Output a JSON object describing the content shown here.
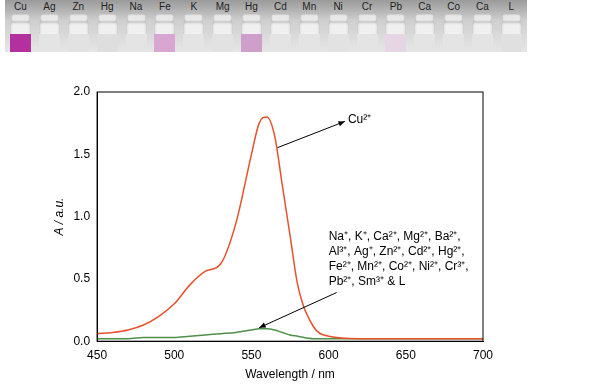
{
  "photo": {
    "labels": [
      "Cu",
      "Ag",
      "Zn",
      "Hg",
      "Na",
      "Fe",
      "K",
      "Mg",
      "Hg",
      "Cd",
      "Mn",
      "Ni",
      "Cr",
      "Pb",
      "Ca",
      "Co",
      "Ca",
      "L"
    ],
    "colors": [
      "#b4309e",
      "#e4e4e4",
      "#e2e2e2",
      "#dedede",
      "#e4e4e4",
      "#d9a6d2",
      "#e4e4e4",
      "#e2e2e2",
      "#cf9fcc",
      "#e4e4e4",
      "#e4e4e4",
      "#e2e2e2",
      "#e4e4e4",
      "#e6d6e4",
      "#e4e4e4",
      "#e4e4e4",
      "#e4e4e4",
      "#e0e0e0"
    ]
  },
  "chart_data": {
    "type": "line",
    "x_label": "Wavelength / nm",
    "y_label": "A / a.u.",
    "x": [
      450,
      460,
      470,
      480,
      490,
      500,
      510,
      520,
      530,
      540,
      550,
      555,
      560,
      565,
      570,
      575,
      580,
      590,
      600,
      620,
      650,
      700
    ],
    "series": [
      {
        "name": "Cu²⁺",
        "color": "#e8502a",
        "values": [
          0.06,
          0.07,
          0.09,
          0.13,
          0.2,
          0.3,
          0.45,
          0.56,
          0.62,
          0.95,
          1.5,
          1.75,
          1.8,
          1.65,
          1.25,
          0.85,
          0.45,
          0.12,
          0.04,
          0.02,
          0.02,
          0.02
        ]
      },
      {
        "name": "Na⁺, K⁺, Ca²⁺, Mg²⁺, Ba²⁺,\nAl³⁺, Ag⁺, Zn²⁺, Cd²⁺, Hg²⁺,\nFe²⁺, Mn²⁺, Co²⁺, Ni²⁺, Cr³⁺,\nPb²⁺, Sm³⁺ & L",
        "color": "#4f8f4a",
        "values": [
          0.02,
          0.02,
          0.02,
          0.03,
          0.03,
          0.03,
          0.04,
          0.05,
          0.06,
          0.07,
          0.09,
          0.1,
          0.1,
          0.09,
          0.07,
          0.05,
          0.04,
          0.02,
          0.02,
          0.02,
          0.02,
          0.02
        ]
      }
    ],
    "xlim": [
      450,
      700
    ],
    "xticks": [
      450,
      500,
      550,
      600,
      650,
      700
    ],
    "ylim": [
      0,
      2
    ],
    "yticks": [
      {
        "value": 0,
        "label": "0.0"
      },
      0.5,
      {
        "value": 1,
        "label": "1.0"
      },
      1.5,
      {
        "value": 2,
        "label": "2.0"
      }
    ],
    "grid": false
  }
}
